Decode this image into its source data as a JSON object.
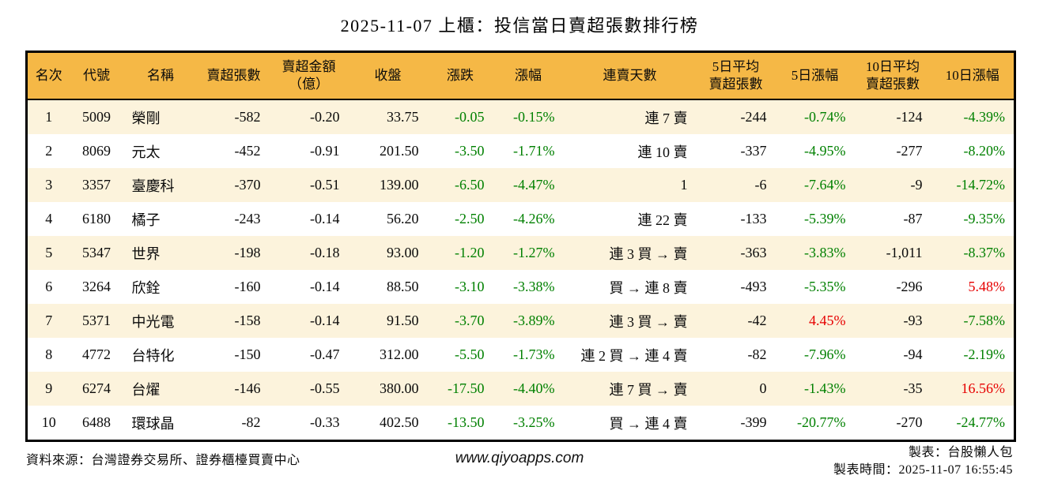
{
  "title": "2025-11-07 上櫃：投信當日賣超張數排行榜",
  "table": {
    "columns": [
      {
        "key": "rank",
        "label": "名次",
        "align": "center"
      },
      {
        "key": "code",
        "label": "代號",
        "align": "center"
      },
      {
        "key": "name",
        "label": "名稱",
        "align": "left"
      },
      {
        "key": "net-sell-volume",
        "label": "賣超張數",
        "align": "right"
      },
      {
        "key": "net-sell-amount",
        "label": "賣超金額\n（億）",
        "align": "right"
      },
      {
        "key": "close",
        "label": "收盤",
        "align": "right"
      },
      {
        "key": "change",
        "label": "漲跌",
        "align": "right"
      },
      {
        "key": "change-pct",
        "label": "漲幅",
        "align": "right"
      },
      {
        "key": "sell-streak",
        "label": "連賣天數",
        "align": "right"
      },
      {
        "key": "avg5-net-sell",
        "label": "5日平均\n賣超張數",
        "align": "right"
      },
      {
        "key": "pct5-change",
        "label": "5日漲幅",
        "align": "right"
      },
      {
        "key": "avg10-net-sell",
        "label": "10日平均\n賣超張數",
        "align": "right"
      },
      {
        "key": "pct10-change",
        "label": "10日漲幅",
        "align": "right"
      }
    ],
    "rows": [
      {
        "cells": [
          "1",
          "5009",
          "榮剛",
          "-582",
          "-0.20",
          "33.75",
          "-0.05",
          "-0.15%",
          "連 7 賣",
          "-244",
          "-0.74%",
          "-124",
          "-4.39%"
        ],
        "cell_colors": [
          "",
          "",
          "",
          "",
          "",
          "",
          "green",
          "green",
          "",
          "",
          "green",
          "",
          "green"
        ]
      },
      {
        "cells": [
          "2",
          "8069",
          "元太",
          "-452",
          "-0.91",
          "201.50",
          "-3.50",
          "-1.71%",
          "連 10 賣",
          "-337",
          "-4.95%",
          "-277",
          "-8.20%"
        ],
        "cell_colors": [
          "",
          "",
          "",
          "",
          "",
          "",
          "green",
          "green",
          "",
          "",
          "green",
          "",
          "green"
        ]
      },
      {
        "cells": [
          "3",
          "3357",
          "臺慶科",
          "-370",
          "-0.51",
          "139.00",
          "-6.50",
          "-4.47%",
          "1",
          "-6",
          "-7.64%",
          "-9",
          "-14.72%"
        ],
        "cell_colors": [
          "",
          "",
          "",
          "",
          "",
          "",
          "green",
          "green",
          "",
          "",
          "green",
          "",
          "green"
        ]
      },
      {
        "cells": [
          "4",
          "6180",
          "橘子",
          "-243",
          "-0.14",
          "56.20",
          "-2.50",
          "-4.26%",
          "連 22 賣",
          "-133",
          "-5.39%",
          "-87",
          "-9.35%"
        ],
        "cell_colors": [
          "",
          "",
          "",
          "",
          "",
          "",
          "green",
          "green",
          "",
          "",
          "green",
          "",
          "green"
        ]
      },
      {
        "cells": [
          "5",
          "5347",
          "世界",
          "-198",
          "-0.18",
          "93.00",
          "-1.20",
          "-1.27%",
          "連 3 買 → 賣",
          "-363",
          "-3.83%",
          "-1,011",
          "-8.37%"
        ],
        "cell_colors": [
          "",
          "",
          "",
          "",
          "",
          "",
          "green",
          "green",
          "",
          "",
          "green",
          "",
          "green"
        ]
      },
      {
        "cells": [
          "6",
          "3264",
          "欣銓",
          "-160",
          "-0.14",
          "88.50",
          "-3.10",
          "-3.38%",
          "買 → 連 8 賣",
          "-493",
          "-5.35%",
          "-296",
          "5.48%"
        ],
        "cell_colors": [
          "",
          "",
          "",
          "",
          "",
          "",
          "green",
          "green",
          "",
          "",
          "green",
          "",
          "red"
        ]
      },
      {
        "cells": [
          "7",
          "5371",
          "中光電",
          "-158",
          "-0.14",
          "91.50",
          "-3.70",
          "-3.89%",
          "連 3 買 → 賣",
          "-42",
          "4.45%",
          "-93",
          "-7.58%"
        ],
        "cell_colors": [
          "",
          "",
          "",
          "",
          "",
          "",
          "green",
          "green",
          "",
          "",
          "red",
          "",
          "green"
        ]
      },
      {
        "cells": [
          "8",
          "4772",
          "台特化",
          "-150",
          "-0.47",
          "312.00",
          "-5.50",
          "-1.73%",
          "連 2 買 → 連 4 賣",
          "-82",
          "-7.96%",
          "-94",
          "-2.19%"
        ],
        "cell_colors": [
          "",
          "",
          "",
          "",
          "",
          "",
          "green",
          "green",
          "",
          "",
          "green",
          "",
          "green"
        ]
      },
      {
        "cells": [
          "9",
          "6274",
          "台燿",
          "-146",
          "-0.55",
          "380.00",
          "-17.50",
          "-4.40%",
          "連 7 買 → 賣",
          "0",
          "-1.43%",
          "-35",
          "16.56%"
        ],
        "cell_colors": [
          "",
          "",
          "",
          "",
          "",
          "",
          "green",
          "green",
          "",
          "",
          "green",
          "",
          "red"
        ]
      },
      {
        "cells": [
          "10",
          "6488",
          "環球晶",
          "-82",
          "-0.33",
          "402.50",
          "-13.50",
          "-3.25%",
          "買 → 連 4 賣",
          "-399",
          "-20.77%",
          "-270",
          "-24.77%"
        ],
        "cell_colors": [
          "",
          "",
          "",
          "",
          "",
          "",
          "green",
          "green",
          "",
          "",
          "green",
          "",
          "green"
        ]
      }
    ]
  },
  "footer": {
    "source": "資料來源：台灣證券交易所、證券櫃檯買賣中心",
    "website": "www.qiyoapps.com",
    "made_by": "製表：台股懶人包",
    "made_time": "製表時間：2025-11-07 16:55:45"
  },
  "colors": {
    "header_bg": "#F5B846",
    "row_alt_bg": "#FCF3DC",
    "negative_green": "#008000",
    "positive_red": "#E60000",
    "border": "#000000"
  }
}
